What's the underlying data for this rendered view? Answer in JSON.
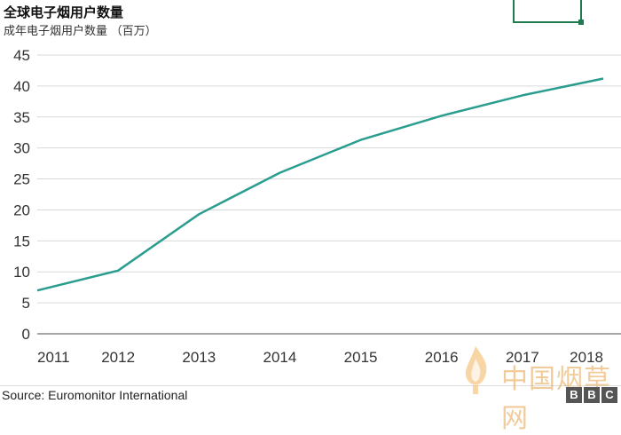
{
  "header": {
    "title": "全球电子烟用户数量",
    "subtitle": "成年电子烟用户数量 （百万）"
  },
  "footer": {
    "source": "Source: Euromonitor International"
  },
  "watermark": {
    "site_text": "中国烟草网",
    "bbc_letters": [
      "B",
      "B",
      "C"
    ]
  },
  "colors": {
    "line": "#2a9d8f",
    "grid": "#d9d9d9",
    "accent": "#1f7a4d"
  },
  "chart_data": {
    "type": "line",
    "title": "全球电子烟用户数量",
    "ylabel": "成年电子烟用户数量 （百万）",
    "x": [
      2011,
      2012,
      2013,
      2014,
      2015,
      2016,
      2017,
      2018
    ],
    "series": [
      {
        "values": [
          7,
          10.2,
          19.3,
          26.0,
          31.3,
          35.2,
          38.5,
          41.2
        ]
      }
    ],
    "yticks": [
      0,
      5,
      10,
      15,
      20,
      25,
      30,
      35,
      40,
      45
    ],
    "ylim": [
      0,
      45
    ],
    "grid": true
  }
}
